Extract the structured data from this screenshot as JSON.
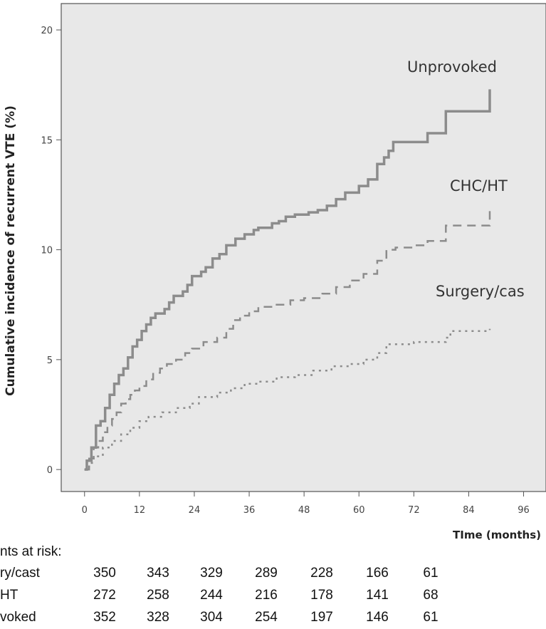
{
  "chart_data": {
    "type": "step",
    "y_label": "Cumulative incidence of recurrent VTE (%)",
    "x_label": "TIme (months)",
    "xlim": [
      -5.1,
      100.9
    ],
    "ylim": [
      -1,
      21.2
    ],
    "xticks": [
      0,
      12,
      24,
      36,
      48,
      60,
      72,
      84,
      96
    ],
    "yticks": [
      0,
      5,
      10,
      15,
      20
    ],
    "background": "#e8e8e8",
    "series": [
      {
        "name": "Unprovoked",
        "color": "#8c8c8c",
        "dash": "solid",
        "x": [
          0,
          0.5,
          1.5,
          2.5,
          3.5,
          4.5,
          5.5,
          6.5,
          7.5,
          8.5,
          9.5,
          10.5,
          11.5,
          12.5,
          13.5,
          14.5,
          15.5,
          17.5,
          18.5,
          19.5,
          21.5,
          22.5,
          23.5,
          25.5,
          26.5,
          28,
          29.5,
          31,
          33,
          35,
          37,
          38,
          41,
          42.5,
          44,
          46,
          49,
          51,
          53,
          55,
          57,
          60,
          62,
          64,
          65.5,
          66.5,
          67.5,
          75,
          79,
          88.6
        ],
        "values": [
          0,
          0.4,
          1.0,
          2.0,
          2.2,
          2.8,
          3.4,
          3.9,
          4.3,
          4.6,
          5.1,
          5.6,
          5.9,
          6.3,
          6.6,
          6.9,
          7.1,
          7.3,
          7.6,
          7.9,
          8.1,
          8.4,
          8.8,
          9.0,
          9.2,
          9.6,
          9.8,
          10.2,
          10.5,
          10.7,
          10.9,
          11.0,
          11.2,
          11.3,
          11.5,
          11.6,
          11.7,
          11.8,
          12.0,
          12.3,
          12.6,
          12.9,
          13.2,
          13.9,
          14.2,
          14.5,
          14.9,
          15.3,
          16.3,
          17.3
        ]
      },
      {
        "name": "CHC/HT",
        "color": "#8c8c8c",
        "dash": "dashed",
        "x": [
          0,
          1,
          2,
          3,
          4,
          5,
          6,
          7,
          8,
          9,
          10,
          11,
          12,
          13.5,
          15,
          16.5,
          18,
          20,
          22,
          23.5,
          26,
          29,
          31,
          32.5,
          34,
          36,
          38,
          42,
          45,
          48,
          52,
          55,
          58,
          61,
          64,
          66,
          68,
          72,
          75,
          79,
          88.6
        ],
        "values": [
          0,
          0.5,
          1.0,
          1.3,
          1.7,
          2.0,
          2.3,
          2.6,
          3.0,
          3.2,
          3.4,
          3.6,
          3.8,
          4.1,
          4.4,
          4.6,
          4.8,
          5.0,
          5.3,
          5.5,
          5.8,
          6.0,
          6.4,
          6.8,
          7.0,
          7.2,
          7.4,
          7.5,
          7.7,
          7.8,
          8.0,
          8.3,
          8.6,
          8.9,
          9.5,
          10.0,
          10.1,
          10.2,
          10.4,
          11.1,
          11.8
        ]
      },
      {
        "name": "Surgery/cas",
        "color": "#8c8c8c",
        "dash": "dotted",
        "x": [
          0,
          1,
          2,
          4,
          6,
          8,
          10,
          12,
          14,
          17,
          20,
          23,
          25,
          29,
          32,
          35,
          38,
          42,
          46,
          50,
          54,
          58,
          61,
          64,
          66,
          72,
          79,
          80,
          88.6
        ],
        "values": [
          0,
          0.3,
          0.6,
          1.0,
          1.3,
          1.6,
          1.9,
          2.2,
          2.4,
          2.6,
          2.8,
          3.0,
          3.3,
          3.5,
          3.7,
          3.9,
          4.0,
          4.2,
          4.3,
          4.5,
          4.7,
          4.8,
          5.0,
          5.3,
          5.7,
          5.8,
          6.0,
          6.3,
          6.4
        ]
      }
    ]
  },
  "risk_table": {
    "title": "nts at risk:",
    "rows": [
      {
        "label": "ry/cast",
        "values": [
          "350",
          "343",
          "329",
          "289",
          "228",
          "166",
          "61"
        ]
      },
      {
        "label": "HT",
        "values": [
          "272",
          "258",
          "244",
          "216",
          "178",
          "141",
          "68"
        ]
      },
      {
        "label": "voked",
        "values": [
          "352",
          "328",
          "304",
          "254",
          "197",
          "146",
          "61"
        ]
      }
    ]
  }
}
